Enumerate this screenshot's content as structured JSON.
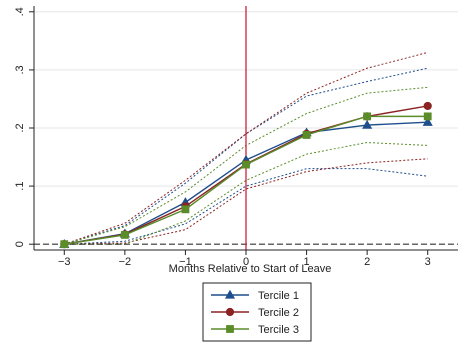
{
  "chart_data": {
    "type": "line",
    "title": "",
    "xlabel": "Months Relative to Start of Leave",
    "ylabel": "",
    "x": [
      -3,
      -2,
      -1,
      0,
      1,
      2,
      3
    ],
    "xlim": [
      -3.5,
      3.5
    ],
    "ylim": [
      -0.01,
      0.41
    ],
    "x_ticks": [
      "−3",
      "−2",
      "−1",
      "0",
      "1",
      "2",
      "3"
    ],
    "y_ticks": [
      {
        "value": 0,
        "label": "0"
      },
      {
        "value": 0.1,
        "label": ".1"
      },
      {
        "value": 0.2,
        "label": ".2"
      },
      {
        "value": 0.3,
        "label": ".3"
      },
      {
        "value": 0.4,
        "label": ".4"
      }
    ],
    "grid": "horizontal",
    "legend": "bottom",
    "reference_lines": [
      {
        "axis": "y",
        "value": 0,
        "style": "dashed",
        "color": "#333333"
      },
      {
        "axis": "x",
        "value": 0,
        "style": "solid",
        "color": "#c8102e"
      }
    ],
    "series": [
      {
        "name": "Tercile 1",
        "color": "#1f4e8c",
        "marker": "triangle",
        "values": [
          0.0,
          0.018,
          0.072,
          0.145,
          0.192,
          0.205,
          0.21
        ],
        "ci_lower": [
          0.0,
          0.005,
          0.035,
          0.1,
          0.13,
          0.13,
          0.117
        ],
        "ci_upper": [
          0.0,
          0.032,
          0.105,
          0.19,
          0.255,
          0.28,
          0.303
        ]
      },
      {
        "name": "Tercile 2",
        "color": "#8b2323",
        "marker": "circle",
        "values": [
          0.0,
          0.017,
          0.065,
          0.138,
          0.19,
          0.22,
          0.238
        ],
        "ci_lower": [
          0.0,
          0.002,
          0.025,
          0.095,
          0.125,
          0.14,
          0.147
        ],
        "ci_upper": [
          0.0,
          0.036,
          0.11,
          0.19,
          0.26,
          0.303,
          0.33
        ]
      },
      {
        "name": "Tercile 3",
        "color": "#5b8c2a",
        "marker": "square",
        "values": [
          0.0,
          0.016,
          0.06,
          0.137,
          0.188,
          0.22,
          0.22
        ],
        "ci_lower": [
          0.0,
          0.0,
          0.04,
          0.11,
          0.155,
          0.175,
          0.17
        ],
        "ci_upper": [
          0.0,
          0.03,
          0.09,
          0.17,
          0.225,
          0.26,
          0.27
        ]
      }
    ]
  }
}
